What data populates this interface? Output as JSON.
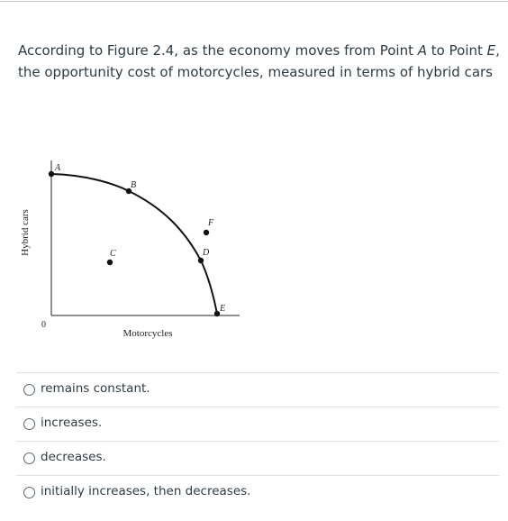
{
  "question": {
    "segments": [
      "According to Figure 2.4, as the economy moves from Point ",
      "A",
      " to Point ",
      "E",
      ", the opportunity cost of motorcycles, measured in terms of hybrid cars"
    ]
  },
  "figure": {
    "y_axis_label": "Hybrid cars",
    "x_axis_label": "Motorcycles",
    "origin": "0",
    "points": [
      "A",
      "B",
      "C",
      "D",
      "E",
      "F"
    ]
  },
  "options": [
    "remains constant.",
    "increases.",
    "decreases.",
    "initially increases, then decreases."
  ]
}
